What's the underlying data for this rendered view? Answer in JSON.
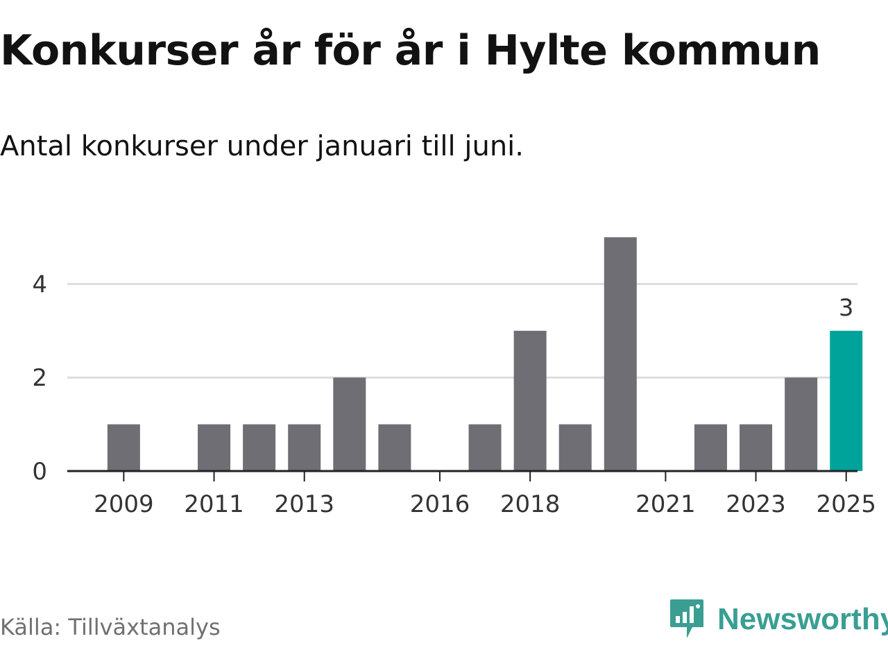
{
  "title": "Konkurser år för år i Hylte kommun",
  "subtitle": "Antal konkurser under januari till juni.",
  "source": "Källa: Tillväxtanalys",
  "brand": {
    "name": "Newsworthy",
    "icon": "newsworthy-logo-icon",
    "color": "#3a9e93"
  },
  "colors": {
    "bar": "#6f6e74",
    "highlight": "#00a39a",
    "grid": "#dddddd",
    "axis": "#222222"
  },
  "chart_data": {
    "type": "bar",
    "categories": [
      "2009",
      "2010",
      "2011",
      "2012",
      "2013",
      "2014",
      "2015",
      "2016",
      "2017",
      "2018",
      "2019",
      "2020",
      "2021",
      "2022",
      "2023",
      "2024",
      "2025"
    ],
    "values": [
      1,
      0,
      1,
      1,
      1,
      2,
      1,
      0,
      1,
      3,
      1,
      5,
      0,
      1,
      1,
      2,
      3
    ],
    "x_tick_labels": [
      "2009",
      "2011",
      "2013",
      "2016",
      "2018",
      "2021",
      "2023",
      "2025"
    ],
    "y_tick_labels": [
      "0",
      "2",
      "4"
    ],
    "ylim": [
      0,
      5
    ],
    "grid": true,
    "highlight": {
      "category": "2025",
      "label": "3"
    }
  }
}
